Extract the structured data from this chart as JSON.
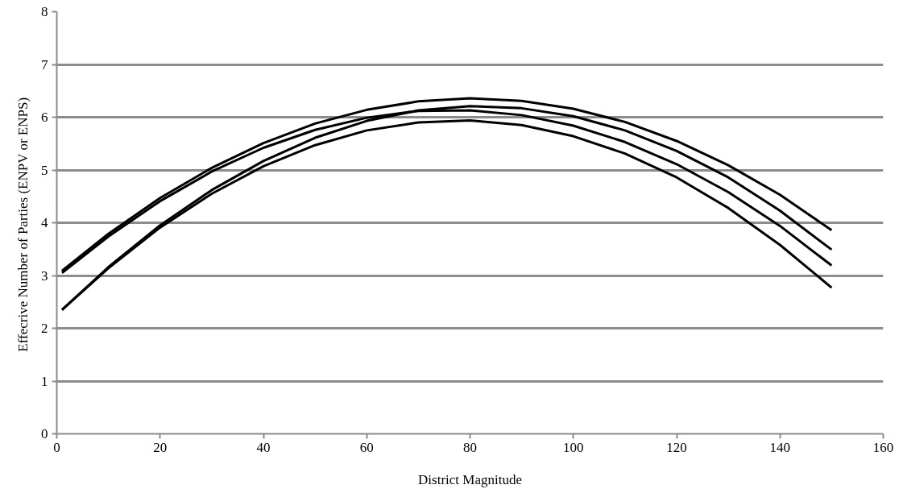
{
  "chart_data": {
    "type": "line",
    "xlabel": "District Magnitude",
    "ylabel": "Effecrive Number of Parties (ENPV  or ENPS)",
    "x": [
      1,
      10,
      20,
      30,
      40,
      50,
      60,
      70,
      80,
      90,
      100,
      110,
      120,
      130,
      140,
      150
    ],
    "series": [
      {
        "color": "#000000",
        "values": [
          3.09,
          3.79,
          4.47,
          5.04,
          5.51,
          5.88,
          6.14,
          6.3,
          6.36,
          6.31,
          6.16,
          5.91,
          5.55,
          5.09,
          4.53,
          3.86
        ]
      },
      {
        "color": "#000000",
        "values": [
          2.35,
          3.16,
          3.95,
          4.62,
          5.17,
          5.61,
          5.93,
          6.13,
          6.21,
          6.17,
          6.02,
          5.75,
          5.36,
          4.86,
          4.23,
          3.49
        ]
      },
      {
        "color": "#000000",
        "values": [
          3.05,
          3.74,
          4.41,
          4.97,
          5.42,
          5.76,
          5.99,
          6.12,
          6.13,
          6.04,
          5.84,
          5.53,
          5.11,
          4.58,
          3.94,
          3.19
        ]
      },
      {
        "color": "#000000",
        "values": [
          2.35,
          3.14,
          3.91,
          4.55,
          5.07,
          5.47,
          5.75,
          5.9,
          5.94,
          5.85,
          5.64,
          5.31,
          4.86,
          4.28,
          3.58,
          2.77
        ]
      }
    ],
    "xlim": [
      0,
      160
    ],
    "xticks": [
      0,
      20,
      40,
      60,
      80,
      100,
      120,
      140,
      160
    ],
    "ylim": [
      0,
      8
    ],
    "yticks": [
      0,
      1,
      2,
      3,
      4,
      5,
      6,
      7,
      8
    ],
    "grid": "y",
    "marker": "none",
    "line_style": "solid"
  }
}
